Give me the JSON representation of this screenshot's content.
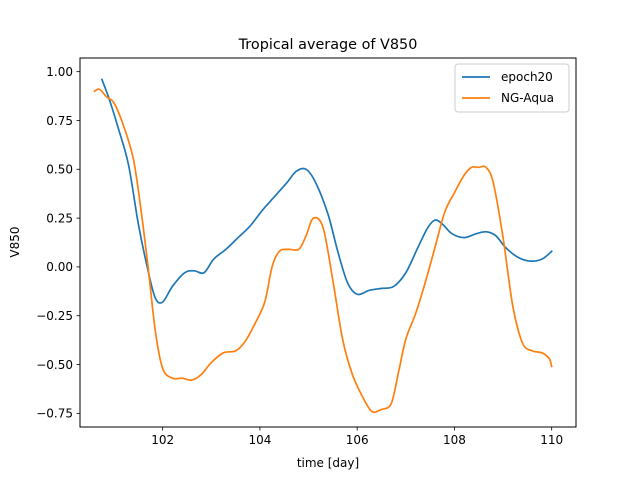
{
  "chart_data": {
    "type": "line",
    "title": "Tropical average of V850",
    "xlabel": "time [day]",
    "ylabel": "V850",
    "xlim": [
      100.3,
      110.5
    ],
    "ylim": [
      -0.82,
      1.07
    ],
    "xticks": [
      102,
      104,
      106,
      108,
      110
    ],
    "xtick_labels": [
      "102",
      "104",
      "106",
      "108",
      "110"
    ],
    "yticks": [
      -0.75,
      -0.5,
      -0.25,
      0.0,
      0.25,
      0.5,
      0.75,
      1.0
    ],
    "ytick_labels": [
      "−0.75",
      "−0.50",
      "−0.25",
      "0.00",
      "0.25",
      "0.50",
      "0.75",
      "1.00"
    ],
    "grid": false,
    "legend_position": "top-right",
    "series": [
      {
        "name": "epoch20",
        "color": "#1f77b4",
        "x": [
          100.75,
          100.9,
          101.1,
          101.3,
          101.5,
          101.7,
          101.85,
          102.0,
          102.2,
          102.45,
          102.65,
          102.85,
          103.05,
          103.3,
          103.55,
          103.8,
          104.05,
          104.3,
          104.55,
          104.75,
          104.95,
          105.15,
          105.4,
          105.6,
          105.8,
          106.0,
          106.25,
          106.5,
          106.75,
          107.0,
          107.25,
          107.45,
          107.6,
          107.75,
          107.95,
          108.2,
          108.45,
          108.65,
          108.85,
          109.05,
          109.3,
          109.55,
          109.8,
          110.0
        ],
        "y": [
          0.96,
          0.86,
          0.7,
          0.52,
          0.22,
          -0.02,
          -0.16,
          -0.18,
          -0.1,
          -0.03,
          -0.02,
          -0.03,
          0.04,
          0.09,
          0.15,
          0.21,
          0.29,
          0.36,
          0.43,
          0.49,
          0.5,
          0.43,
          0.27,
          0.08,
          -0.08,
          -0.14,
          -0.12,
          -0.11,
          -0.1,
          -0.03,
          0.1,
          0.2,
          0.24,
          0.22,
          0.17,
          0.15,
          0.17,
          0.18,
          0.16,
          0.1,
          0.05,
          0.03,
          0.04,
          0.08
        ]
      },
      {
        "name": "NG-Aqua",
        "color": "#ff7f0e",
        "x": [
          100.6,
          100.7,
          100.85,
          101.0,
          101.2,
          101.4,
          101.55,
          101.7,
          101.85,
          102.0,
          102.2,
          102.4,
          102.6,
          102.8,
          103.0,
          103.25,
          103.5,
          103.7,
          103.9,
          104.1,
          104.25,
          104.4,
          104.6,
          104.8,
          104.95,
          105.1,
          105.3,
          105.5,
          105.7,
          105.9,
          106.1,
          106.3,
          106.5,
          106.7,
          106.85,
          107.0,
          107.2,
          107.4,
          107.6,
          107.8,
          108.0,
          108.2,
          108.35,
          108.5,
          108.65,
          108.8,
          109.0,
          109.2,
          109.4,
          109.6,
          109.8,
          109.95,
          110.0
        ],
        "y": [
          0.9,
          0.91,
          0.87,
          0.84,
          0.72,
          0.55,
          0.3,
          0.0,
          -0.33,
          -0.52,
          -0.57,
          -0.57,
          -0.58,
          -0.55,
          -0.49,
          -0.44,
          -0.43,
          -0.38,
          -0.29,
          -0.18,
          0.0,
          0.08,
          0.09,
          0.09,
          0.16,
          0.25,
          0.2,
          -0.07,
          -0.37,
          -0.55,
          -0.66,
          -0.74,
          -0.73,
          -0.7,
          -0.54,
          -0.37,
          -0.24,
          -0.08,
          0.1,
          0.28,
          0.38,
          0.47,
          0.51,
          0.51,
          0.51,
          0.43,
          0.15,
          -0.2,
          -0.39,
          -0.43,
          -0.44,
          -0.47,
          -0.51
        ]
      }
    ]
  }
}
